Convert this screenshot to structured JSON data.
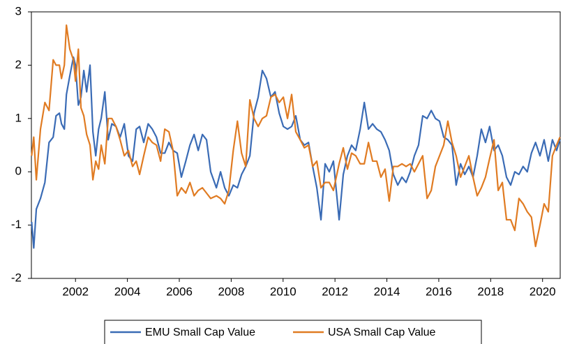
{
  "chart_data": {
    "type": "line",
    "x": [
      2000.31,
      2000.39,
      2000.49,
      2000.65,
      2000.82,
      2000.98,
      2001.14,
      2001.25,
      2001.38,
      2001.46,
      2001.57,
      2001.65,
      2001.78,
      2001.92,
      2002.0,
      2002.11,
      2002.21,
      2002.32,
      2002.43,
      2002.56,
      2002.67,
      2002.78,
      2002.89,
      2002.99,
      2003.13,
      2003.26,
      2003.4,
      2003.56,
      2003.72,
      2003.88,
      2004.04,
      2004.2,
      2004.34,
      2004.47,
      2004.63,
      2004.8,
      2004.96,
      2005.12,
      2005.28,
      2005.44,
      2005.6,
      2005.76,
      2005.92,
      2006.08,
      2006.25,
      2006.41,
      2006.57,
      2006.73,
      2006.89,
      2007.05,
      2007.21,
      2007.43,
      2007.59,
      2007.75,
      2007.91,
      2008.08,
      2008.24,
      2008.4,
      2008.56,
      2008.72,
      2008.88,
      2009.04,
      2009.2,
      2009.36,
      2009.53,
      2009.69,
      2009.85,
      2010.01,
      2010.17,
      2010.33,
      2010.49,
      2010.66,
      2010.82,
      2010.98,
      2011.14,
      2011.3,
      2011.46,
      2011.62,
      2011.78,
      2011.94,
      2012.16,
      2012.32,
      2012.48,
      2012.64,
      2012.8,
      2012.97,
      2013.13,
      2013.29,
      2013.45,
      2013.61,
      2013.77,
      2013.93,
      2014.09,
      2014.25,
      2014.42,
      2014.58,
      2014.74,
      2014.9,
      2015.06,
      2015.22,
      2015.38,
      2015.55,
      2015.71,
      2015.87,
      2016.03,
      2016.19,
      2016.35,
      2016.51,
      2016.67,
      2016.84,
      2017.0,
      2017.16,
      2017.32,
      2017.48,
      2017.64,
      2017.8,
      2017.96,
      2018.13,
      2018.29,
      2018.45,
      2018.61,
      2018.77,
      2018.93,
      2019.09,
      2019.25,
      2019.41,
      2019.57,
      2019.73,
      2019.9,
      2020.06,
      2020.22,
      2020.38,
      2020.54,
      2020.67
    ],
    "series": [
      {
        "name": "EMU Small Cap Value",
        "color": "#3a6bb5",
        "values": [
          -0.94,
          -1.43,
          -0.7,
          -0.5,
          -0.2,
          0.55,
          0.65,
          1.05,
          1.1,
          0.9,
          0.8,
          1.45,
          1.8,
          2.15,
          2.0,
          1.25,
          1.4,
          1.9,
          1.5,
          2.0,
          0.75,
          0.3,
          0.8,
          1.0,
          1.5,
          0.6,
          0.9,
          0.85,
          0.65,
          0.9,
          0.3,
          0.2,
          0.8,
          0.85,
          0.55,
          0.9,
          0.8,
          0.65,
          0.35,
          0.35,
          0.55,
          0.4,
          0.35,
          -0.1,
          0.2,
          0.5,
          0.7,
          0.4,
          0.7,
          0.6,
          0.0,
          -0.3,
          0.0,
          -0.3,
          -0.45,
          -0.25,
          -0.3,
          -0.05,
          0.1,
          0.3,
          1.1,
          1.4,
          1.9,
          1.75,
          1.4,
          1.5,
          1.1,
          0.85,
          0.8,
          0.85,
          1.05,
          0.6,
          0.5,
          0.55,
          0.1,
          -0.3,
          -0.9,
          0.15,
          0.0,
          0.2,
          -0.9,
          -0.05,
          0.3,
          0.5,
          0.4,
          0.8,
          1.3,
          0.8,
          0.9,
          0.8,
          0.75,
          0.6,
          0.4,
          -0.05,
          -0.25,
          -0.1,
          -0.2,
          0.0,
          0.3,
          0.5,
          1.05,
          1.0,
          1.15,
          1.0,
          0.95,
          0.65,
          0.6,
          0.5,
          -0.25,
          0.15,
          -0.05,
          0.1,
          -0.1,
          0.3,
          0.8,
          0.55,
          0.85,
          0.4,
          0.5,
          0.3,
          -0.1,
          -0.25,
          0.0,
          -0.05,
          0.1,
          0.0,
          0.35,
          0.55,
          0.3,
          0.6,
          0.2,
          0.6,
          0.4,
          0.6
        ]
      },
      {
        "name": "USA Small Cap Value",
        "color": "#e07b22",
        "values": [
          0.3,
          0.65,
          -0.15,
          0.8,
          1.3,
          1.15,
          2.1,
          2.0,
          2.0,
          1.75,
          2.0,
          2.75,
          2.3,
          2.1,
          1.7,
          2.3,
          1.2,
          1.05,
          0.7,
          0.5,
          -0.15,
          0.2,
          0.05,
          0.5,
          0.15,
          1.0,
          1.0,
          0.85,
          0.6,
          0.3,
          0.4,
          0.1,
          0.2,
          -0.05,
          0.3,
          0.65,
          0.55,
          0.5,
          0.2,
          0.8,
          0.75,
          0.4,
          -0.45,
          -0.3,
          -0.4,
          -0.2,
          -0.45,
          -0.35,
          -0.3,
          -0.4,
          -0.5,
          -0.45,
          -0.5,
          -0.6,
          -0.35,
          0.4,
          0.95,
          0.35,
          0.1,
          1.35,
          1.0,
          0.85,
          1.0,
          1.05,
          1.4,
          1.45,
          1.3,
          1.4,
          1.0,
          1.45,
          0.75,
          0.6,
          0.45,
          0.5,
          0.1,
          0.2,
          -0.3,
          -0.2,
          -0.2,
          -0.35,
          0.15,
          0.45,
          0.05,
          0.35,
          0.3,
          0.15,
          0.15,
          0.55,
          0.2,
          0.2,
          -0.1,
          0.05,
          -0.55,
          0.1,
          0.1,
          0.15,
          0.1,
          0.15,
          0.0,
          0.15,
          0.3,
          -0.5,
          -0.35,
          0.1,
          0.3,
          0.5,
          0.95,
          0.55,
          0.3,
          -0.1,
          0.1,
          0.3,
          -0.1,
          -0.45,
          -0.3,
          -0.1,
          0.25,
          0.6,
          -0.35,
          -0.2,
          -0.9,
          -0.9,
          -1.1,
          -0.5,
          -0.6,
          -0.75,
          -0.85,
          -1.4,
          -1.0,
          -0.6,
          -0.75,
          0.3,
          0.5,
          0.65
        ]
      }
    ],
    "xlim": [
      2000.3,
      2020.68
    ],
    "xticks": [
      2002,
      2004,
      2006,
      2008,
      2010,
      2012,
      2014,
      2016,
      2018,
      2020
    ],
    "ylim": [
      -2,
      3
    ],
    "yticks": [
      -2,
      -1,
      0,
      1,
      2,
      3
    ],
    "grid": false,
    "legend": "bottom"
  }
}
